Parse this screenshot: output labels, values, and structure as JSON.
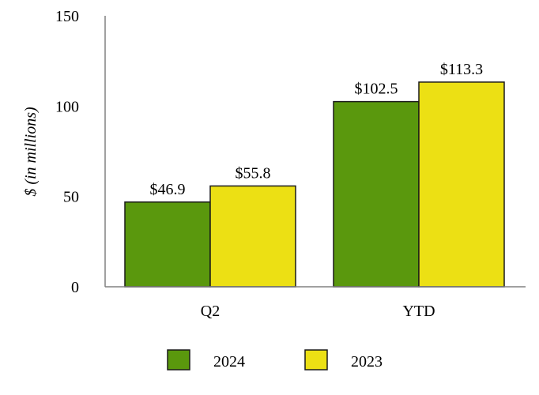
{
  "chart_data": {
    "type": "bar",
    "categories": [
      "Q2",
      "YTD"
    ],
    "series": [
      {
        "name": "2024",
        "values": [
          46.9,
          102.5
        ],
        "labels": [
          "$46.9",
          "$102.5"
        ],
        "color": "#5a980d"
      },
      {
        "name": "2023",
        "values": [
          55.8,
          113.3
        ],
        "labels": [
          "$55.8",
          "$113.3"
        ],
        "color": "#ece014"
      }
    ],
    "ylabel": "$ (in millions)",
    "xlabel": "",
    "ylim": [
      0,
      150
    ],
    "yticks": [
      "0",
      "50",
      "100",
      "150"
    ],
    "ytick_values": [
      0,
      50,
      100,
      150
    ],
    "grid": false,
    "legend_position": "bottom"
  }
}
